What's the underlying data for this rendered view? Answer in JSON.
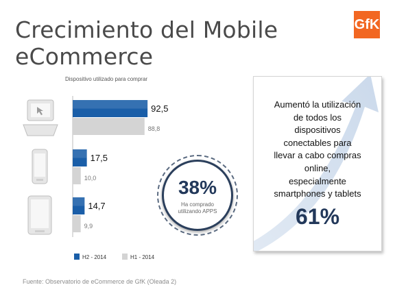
{
  "slide": {
    "title": "Crecimiento del Mobile eCommerce",
    "logo_text": "GfK",
    "source": "Fuente: Observatorio de eCommerce de GfK (Oleada 2)"
  },
  "chart_data": {
    "type": "bar",
    "orientation": "horizontal",
    "title": "Dispositivo utilizado para comprar",
    "categories": [
      "computer-icon",
      "smartphone-icon",
      "tablet-icon"
    ],
    "series": [
      {
        "name": "H2 - 2014",
        "color": "#1a5ea8",
        "values": [
          92.5,
          17.5,
          14.7
        ],
        "labels": [
          "92,5",
          "17,5",
          "14,7"
        ]
      },
      {
        "name": "H1 - 2014",
        "color": "#d4d4d4",
        "values": [
          88.8,
          10.0,
          9.9
        ],
        "labels": [
          "88,8",
          "10,0",
          "9,9"
        ]
      }
    ],
    "xlim": [
      0,
      100
    ],
    "grid": false,
    "legend": "bottom"
  },
  "circle": {
    "value": "38%",
    "caption_line1": "Ha comprado",
    "caption_line2": "utilizando APPS"
  },
  "callout": {
    "lines": [
      "Aumentó la utilización",
      "de todos los",
      "dispositivos",
      "conectables para",
      "llevar a cabo compras",
      "online,",
      "especialmente",
      "smartphones y tablets"
    ],
    "value": "61%"
  },
  "colors": {
    "h2": "#1a5ea8",
    "h1": "#d4d4d4",
    "accent": "#f26722",
    "navy": "#22385a"
  }
}
